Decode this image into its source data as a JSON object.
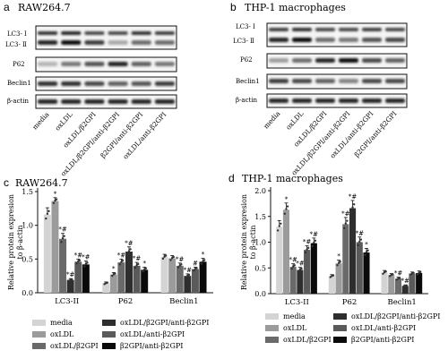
{
  "panels": {
    "a": {
      "letter": "a",
      "title": "RAW264.7"
    },
    "b": {
      "letter": "b",
      "title": "THP-1 macrophages"
    },
    "c": {
      "letter": "c",
      "title": "RAW264.7"
    },
    "d": {
      "letter": "d",
      "title": "THP-1 macrophages"
    }
  },
  "blot_labels": {
    "lc3_i": "LC3- Ⅰ",
    "lc3_ii": "LC3- Ⅱ",
    "p62": "P62",
    "beclin1": "Beclin1",
    "actin": "β-actin"
  },
  "lanes": [
    "media",
    "oxLDL",
    "oxLDL/β2GPI",
    "oxLDL/β2GPI/anti-β2GPI",
    "β2GPI/anti-β2GPI",
    "oxLDL/anti-β2GPI"
  ],
  "lanes_b": [
    "media",
    "oxLDL",
    "oxLDL/β2GPI",
    "oxLDL/β2GPI/anti-β2GPI",
    "oxLDL/anti-β2GPI",
    "β2GPI/anti-β2GPI"
  ],
  "legend": {
    "col1": [
      "media",
      "oxLDL",
      "oxLDL/β2GPI"
    ],
    "col2": [
      "oxLDL/β2GPI/anti-β2GPI",
      "oxLDL/anti-β2GPI",
      "β2GPI/anti-β2GPI"
    ]
  },
  "colors": [
    "#d4d4d4",
    "#9b9b9b",
    "#6a6a6a",
    "#2e2e2e",
    "#5a5a5a",
    "#0a0a0a"
  ],
  "chart_data": [
    {
      "panel": "c",
      "type": "bar",
      "title": "RAW264.7",
      "ylabel": "Relative protein expresion to β-actin",
      "ylim": [
        0,
        1.5
      ],
      "yticks": [
        "0.0",
        "0.5",
        "1.0",
        "1.5"
      ],
      "categories": [
        "LC3-II",
        "P62",
        "Beclin1"
      ],
      "series": [
        {
          "name": "media",
          "values": [
            1.16,
            0.14,
            0.53
          ],
          "errors": [
            0.1,
            0.02,
            0.04
          ],
          "marks": [
            "",
            "",
            ""
          ]
        },
        {
          "name": "oxLDL",
          "values": [
            1.36,
            0.27,
            0.51
          ],
          "errors": [
            0.05,
            0.03,
            0.04
          ],
          "marks": [
            "*",
            "*",
            ""
          ]
        },
        {
          "name": "oxLDL/β2GPI",
          "values": [
            0.8,
            0.45,
            0.4
          ],
          "errors": [
            0.08,
            0.05,
            0.04
          ],
          "marks": [
            "*#",
            "*#",
            "*#"
          ]
        },
        {
          "name": "oxLDL/β2GPI/anti-β2GPI",
          "values": [
            0.19,
            0.61,
            0.25
          ],
          "errors": [
            0.02,
            0.07,
            0.03
          ],
          "marks": [
            "*#",
            "*#",
            "*#"
          ]
        },
        {
          "name": "oxLDL/anti-β2GPI",
          "values": [
            0.46,
            0.4,
            0.35
          ],
          "errors": [
            0.04,
            0.05,
            0.03
          ],
          "marks": [
            "*#",
            "*#",
            "#"
          ]
        },
        {
          "name": "β2GPI/anti-β2GPI",
          "values": [
            0.42,
            0.34,
            0.46
          ],
          "errors": [
            0.05,
            0.04,
            0.05
          ],
          "marks": [
            "*#",
            "*",
            "*"
          ]
        }
      ]
    },
    {
      "panel": "d",
      "type": "bar",
      "title": "THP-1 macrophages",
      "ylabel": "Relative protein expresion to β-actin",
      "ylim": [
        0,
        2.0
      ],
      "yticks": [
        "0.0",
        "0.5",
        "1.0",
        "1.5",
        "2.0"
      ],
      "categories": [
        "LC3-II",
        "P62",
        "Beclin1"
      ],
      "series": [
        {
          "name": "media",
          "values": [
            1.3,
            0.34,
            0.41
          ],
          "errors": [
            0.12,
            0.03,
            0.04
          ],
          "marks": [
            "",
            "",
            ""
          ]
        },
        {
          "name": "oxLDL",
          "values": [
            1.63,
            0.59,
            0.36
          ],
          "errors": [
            0.13,
            0.06,
            0.03
          ],
          "marks": [
            "*",
            "*",
            ""
          ]
        },
        {
          "name": "oxLDL/β2GPI",
          "values": [
            0.52,
            1.35,
            0.29
          ],
          "errors": [
            0.06,
            0.13,
            0.03
          ],
          "marks": [
            "*#",
            "*#",
            "*#"
          ]
        },
        {
          "name": "oxLDL/β2GPI/anti-β2GPI",
          "values": [
            0.46,
            1.66,
            0.15
          ],
          "errors": [
            0.05,
            0.15,
            0.02
          ],
          "marks": [
            "*#",
            "*#",
            "*#"
          ]
        },
        {
          "name": "oxLDL/anti-β2GPI",
          "values": [
            0.85,
            1.0,
            0.39
          ],
          "errors": [
            0.08,
            0.1,
            0.03
          ],
          "marks": [
            "*#",
            "*#",
            ""
          ]
        },
        {
          "name": "β2GPI/anti-β2GPI",
          "values": [
            0.98,
            0.8,
            0.4
          ],
          "errors": [
            0.1,
            0.08,
            0.04
          ],
          "marks": [
            "*#",
            "*",
            ""
          ]
        }
      ]
    }
  ]
}
